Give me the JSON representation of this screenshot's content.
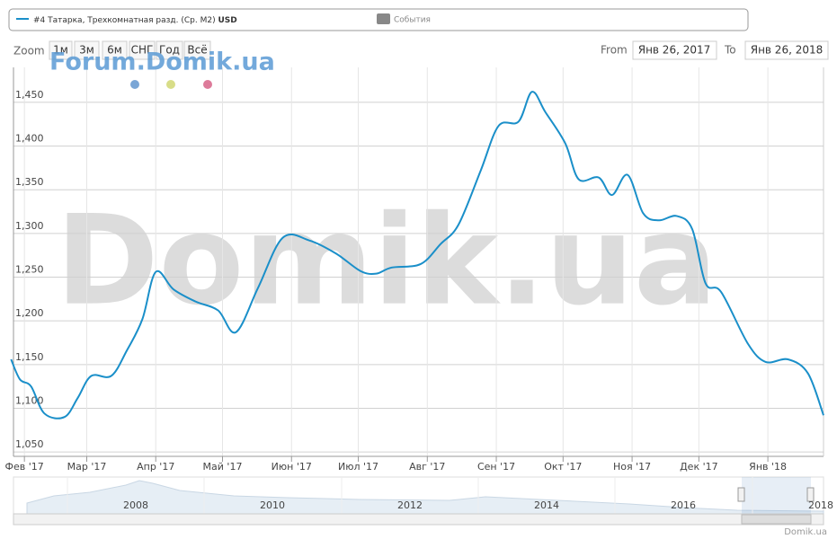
{
  "chart_data": {
    "type": "line",
    "series": [
      {
        "name": "#4 Татарка, Трехкомнатная разд. (Ср. M2)",
        "unit": "USD",
        "color": "#1a8fc9",
        "x": [
          "2017-01-26",
          "2017-01-30",
          "2017-02-04",
          "2017-02-10",
          "2017-02-19",
          "2017-02-25",
          "2017-03-03",
          "2017-03-12",
          "2017-03-19",
          "2017-03-26",
          "2017-04-01",
          "2017-04-09",
          "2017-04-19",
          "2017-04-29",
          "2017-05-07",
          "2017-05-17",
          "2017-05-28",
          "2017-06-09",
          "2017-06-21",
          "2017-07-02",
          "2017-07-09",
          "2017-07-16",
          "2017-07-29",
          "2017-08-07",
          "2017-08-15",
          "2017-08-25",
          "2017-09-02",
          "2017-09-11",
          "2017-09-17",
          "2017-09-23",
          "2017-10-02",
          "2017-10-08",
          "2017-10-17",
          "2017-10-23",
          "2017-10-30",
          "2017-11-06",
          "2017-11-13",
          "2017-11-21",
          "2017-11-28",
          "2017-12-04",
          "2017-12-11",
          "2017-12-23",
          "2017-12-31",
          "2018-01-10",
          "2018-01-19",
          "2018-01-26"
        ],
        "values": [
          1156,
          1133,
          1125,
          1094,
          1090,
          1112,
          1137,
          1137,
          1166,
          1202,
          1256,
          1236,
          1222,
          1212,
          1187,
          1238,
          1295,
          1292,
          1277,
          1257,
          1254,
          1261,
          1265,
          1288,
          1310,
          1372,
          1423,
          1428,
          1462,
          1439,
          1403,
          1362,
          1364,
          1344,
          1367,
          1323,
          1315,
          1320,
          1305,
          1243,
          1233,
          1174,
          1153,
          1156,
          1140,
          1092
        ]
      }
    ],
    "events": "События",
    "xlim": [
      "2017-01-26",
      "2018-01-26"
    ],
    "xticks": [
      {
        "value": "2017-02-01",
        "label": "Фев '17"
      },
      {
        "value": "2017-03-01",
        "label": "Мар '17"
      },
      {
        "value": "2017-04-01",
        "label": "Апр '17"
      },
      {
        "value": "2017-05-01",
        "label": "Май '17"
      },
      {
        "value": "2017-06-01",
        "label": "Июн '17"
      },
      {
        "value": "2017-07-01",
        "label": "Июл '17"
      },
      {
        "value": "2017-08-01",
        "label": "Авг '17"
      },
      {
        "value": "2017-09-01",
        "label": "Сен '17"
      },
      {
        "value": "2017-10-01",
        "label": "Окт '17"
      },
      {
        "value": "2017-11-01",
        "label": "Ноя '17"
      },
      {
        "value": "2017-12-01",
        "label": "Дек '17"
      },
      {
        "value": "2018-01-01",
        "label": "Янв '18"
      }
    ],
    "ylim": [
      1045,
      1490
    ],
    "yticks": [
      {
        "value": 1050,
        "label": "1,050"
      },
      {
        "value": 1100,
        "label": "1,100"
      },
      {
        "value": 1150,
        "label": "1,150"
      },
      {
        "value": 1200,
        "label": "1,200"
      },
      {
        "value": 1250,
        "label": "1,250"
      },
      {
        "value": 1300,
        "label": "1,300"
      },
      {
        "value": 1350,
        "label": "1,350"
      },
      {
        "value": 1400,
        "label": "1,400"
      },
      {
        "value": 1450,
        "label": "1,450"
      }
    ],
    "grid": true
  },
  "ui": {
    "zoom_label": "Zoom",
    "zoom_buttons": [
      "1м",
      "3м",
      "6м",
      "СНГ",
      "Год",
      "Всё"
    ],
    "from_label": "From",
    "from": "Янв 26, 2017",
    "to_label": "To",
    "to": "Янв 26, 2018",
    "watermark_small": "Forum.Domik.ua",
    "watermark_big": "Domik.ua",
    "navigator_years": [
      "2008",
      "2010",
      "2012",
      "2014",
      "2016",
      "2018"
    ],
    "credits": "Domik.ua"
  }
}
